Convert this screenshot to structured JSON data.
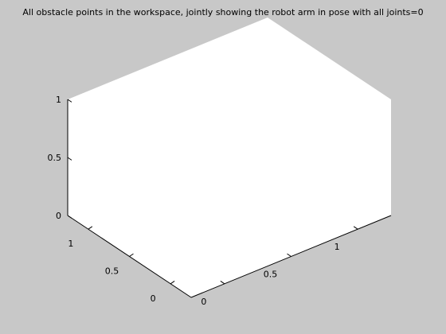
{
  "chart_data": {
    "type": "scatter",
    "projection": "3d",
    "title": "All obstacle points in the workspace, jointly showing the robot arm in pose with all joints=0",
    "xlabel": "",
    "ylabel": "",
    "zlabel": "",
    "xlim": [
      -0.25,
      1.25
    ],
    "ylim": [
      -0.25,
      1.25
    ],
    "zlim": [
      0,
      1
    ],
    "x_ticks": [
      0,
      0.5,
      1
    ],
    "x_tick_labels": [
      "0",
      "0.5",
      "1"
    ],
    "y_ticks": [
      0,
      0.5,
      1
    ],
    "y_tick_labels": [
      "0",
      "0.5",
      "1"
    ],
    "z_ticks": [
      0,
      0.5,
      1
    ],
    "z_tick_labels": [
      "0",
      "0.5",
      "1"
    ],
    "grid": false,
    "series": [
      {
        "values": []
      }
    ],
    "colors": {
      "figure_background": "#c8c8c8",
      "axes_background": "#ffffff",
      "axis_color": "#000000"
    }
  }
}
